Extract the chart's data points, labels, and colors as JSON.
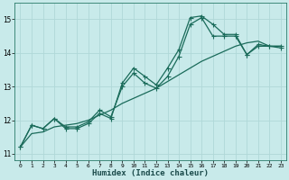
{
  "xlabel": "Humidex (Indice chaleur)",
  "bg_color": "#c8eaea",
  "grid_color": "#b0d8d8",
  "line_color": "#1a6b5a",
  "xlim": [
    -0.5,
    23.5
  ],
  "ylim": [
    10.8,
    15.5
  ],
  "xticks": [
    0,
    1,
    2,
    3,
    4,
    5,
    6,
    7,
    8,
    9,
    10,
    11,
    12,
    13,
    14,
    15,
    16,
    17,
    18,
    19,
    20,
    21,
    22,
    23
  ],
  "yticks": [
    11,
    12,
    13,
    14,
    15
  ],
  "line1_x": [
    0,
    1,
    2,
    3,
    4,
    5,
    6,
    7,
    8,
    9,
    10,
    11,
    12,
    13,
    14,
    15,
    16,
    17,
    18,
    19,
    20,
    21,
    22,
    23
  ],
  "line1_y": [
    11.2,
    11.85,
    11.75,
    12.05,
    11.75,
    11.75,
    11.9,
    12.2,
    12.05,
    13.1,
    13.55,
    13.3,
    13.05,
    13.55,
    14.1,
    15.05,
    15.1,
    14.85,
    14.55,
    14.55,
    13.95,
    14.25,
    14.2,
    14.2
  ],
  "line2_x": [
    0,
    1,
    2,
    3,
    4,
    5,
    6,
    7,
    8,
    9,
    10,
    11,
    12,
    13,
    14,
    15,
    16,
    17,
    18,
    19,
    20,
    21,
    22,
    23
  ],
  "line2_y": [
    11.2,
    11.85,
    11.75,
    12.05,
    11.8,
    11.8,
    11.95,
    12.3,
    12.1,
    13.0,
    13.4,
    13.1,
    12.95,
    13.3,
    13.9,
    14.85,
    15.05,
    14.5,
    14.5,
    14.5,
    13.95,
    14.2,
    14.2,
    14.15
  ],
  "line3_x": [
    0,
    1,
    2,
    3,
    4,
    5,
    6,
    7,
    8,
    9,
    10,
    11,
    12,
    13,
    14,
    15,
    16,
    17,
    18,
    19,
    20,
    21,
    22,
    23
  ],
  "line3_y": [
    11.2,
    11.6,
    11.65,
    11.8,
    11.85,
    11.9,
    12.0,
    12.15,
    12.3,
    12.5,
    12.65,
    12.8,
    12.95,
    13.15,
    13.35,
    13.55,
    13.75,
    13.9,
    14.05,
    14.2,
    14.3,
    14.35,
    14.2,
    14.2
  ],
  "markersize": 2.0,
  "linewidth": 0.9
}
